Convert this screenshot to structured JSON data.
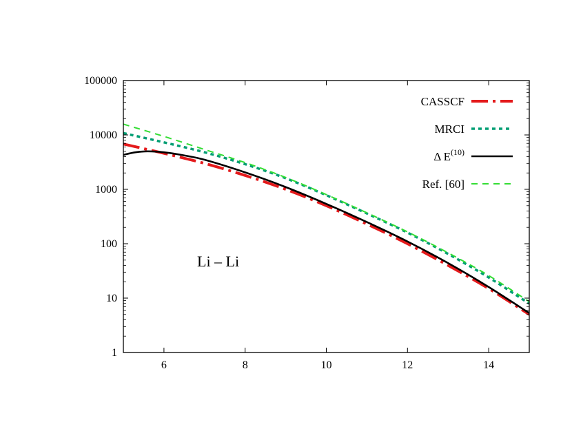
{
  "chart_data": {
    "type": "line",
    "title": "",
    "xlabel": "",
    "ylabel": "",
    "xlim": [
      5,
      15
    ],
    "ylim": [
      1,
      100000
    ],
    "yscale": "log",
    "grid": false,
    "legend_position": "top-right",
    "annotation": "Li – Li",
    "x_ticks": [
      "6",
      "8",
      "10",
      "12",
      "14"
    ],
    "y_ticks": [
      "1",
      "10",
      "100",
      "1000",
      "10000",
      "100000"
    ],
    "series": [
      {
        "name": "CASSCF",
        "color": "#e41a1c",
        "dash": "dashdot",
        "x": [
          5,
          6,
          7,
          8,
          9,
          10,
          11,
          12,
          13,
          14,
          15
        ],
        "y": [
          6800,
          4600,
          3000,
          1800,
          1000,
          500,
          230,
          100,
          40,
          15,
          5
        ]
      },
      {
        "name": "MRCI",
        "color": "#009e73",
        "dash": "dotted",
        "x": [
          5,
          6,
          7,
          8,
          9,
          10,
          11,
          12,
          13,
          14,
          15
        ],
        "y": [
          10800,
          7300,
          4800,
          2900,
          1600,
          780,
          360,
          160,
          65,
          24,
          7.9
        ]
      },
      {
        "name": "Δ E(10)",
        "name_base": "Δ E",
        "name_sup": "(10)",
        "color": "#000000",
        "dash": "solid",
        "x": [
          5,
          5.3,
          5.6,
          6,
          6.5,
          7,
          8,
          9,
          10,
          11,
          12,
          13,
          14,
          15
        ],
        "y": [
          4300,
          4800,
          5000,
          4800,
          4200,
          3500,
          2050,
          1100,
          540,
          250,
          110,
          44,
          16,
          5.3
        ]
      },
      {
        "name": "Ref. [60]",
        "color": "#33dd33",
        "dash": "dashed",
        "x": [
          5,
          6,
          7,
          8,
          9,
          10,
          11,
          12,
          13,
          14,
          15
        ],
        "y": [
          15800,
          9400,
          5400,
          3100,
          1650,
          800,
          370,
          165,
          68,
          26,
          8.6
        ]
      }
    ]
  }
}
